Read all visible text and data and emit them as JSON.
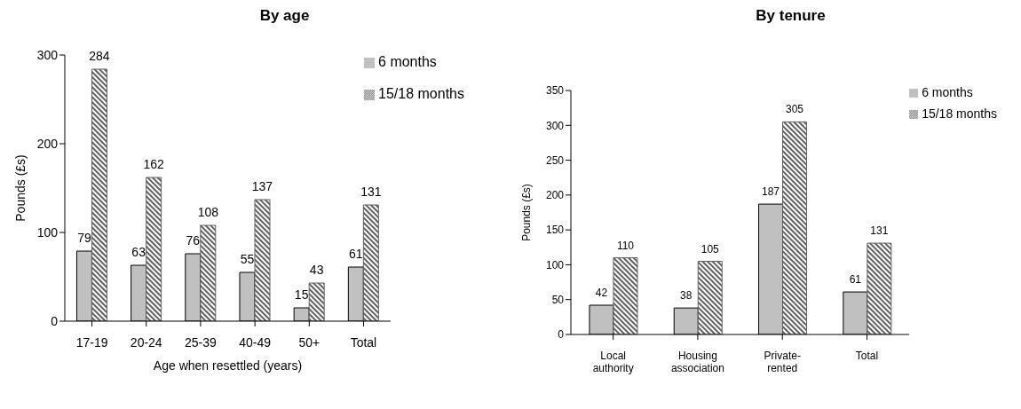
{
  "chart_data": [
    {
      "type": "bar",
      "title": "By age",
      "xlabel": "Age when resettled (years)",
      "ylabel": "Pounds (£s)",
      "categories": [
        "17-19",
        "20-24",
        "25-39",
        "40-49",
        "50+",
        "Total"
      ],
      "series": [
        {
          "name": "6 months",
          "color": "#c0c0c0",
          "values": [
            79,
            63,
            76,
            55,
            15,
            61
          ]
        },
        {
          "name": "15/18 months",
          "color": "#606060",
          "values": [
            284,
            162,
            108,
            137,
            43,
            131
          ]
        }
      ],
      "ylim": [
        0,
        300
      ],
      "yticks": [
        0,
        100,
        200,
        300
      ],
      "grid": false,
      "legend": "top right",
      "data_labels": true
    },
    {
      "type": "bar",
      "title": "By tenure",
      "ylabel": "Pounds (£s)",
      "categories": [
        "Local authority",
        "Housing association",
        "Private-rented",
        "Total"
      ],
      "series": [
        {
          "name": "6 months",
          "color": "#c0c0c0",
          "values": [
            42,
            38,
            187,
            61
          ]
        },
        {
          "name": "15/18 months",
          "color": "#606060",
          "values": [
            110,
            105,
            305,
            131
          ]
        }
      ],
      "ylim": [
        0,
        350
      ],
      "yticks": [
        0,
        50,
        100,
        150,
        200,
        250,
        300,
        350
      ],
      "grid": false,
      "legend": "top right",
      "data_labels": true
    }
  ]
}
